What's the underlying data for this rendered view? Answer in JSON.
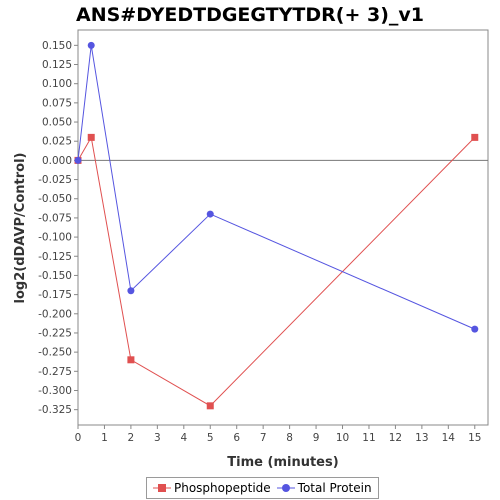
{
  "chart_data": {
    "type": "line",
    "title": "ANS#DYEDTDGEGTYTDR(+ 3)_v1",
    "xlabel": "Time (minutes)",
    "ylabel": "log2(dDAVP/Control)",
    "xlim": [
      0,
      15.5
    ],
    "ylim": [
      -0.345,
      0.17
    ],
    "x_ticks": [
      0,
      1,
      2,
      3,
      4,
      5,
      6,
      7,
      8,
      9,
      10,
      11,
      12,
      13,
      14,
      15
    ],
    "y_ticks": [
      0.15,
      0.125,
      0.1,
      0.075,
      0.05,
      0.025,
      0.0,
      -0.025,
      -0.05,
      -0.075,
      -0.1,
      -0.125,
      -0.15,
      -0.175,
      -0.2,
      -0.225,
      -0.25,
      -0.275,
      -0.3,
      -0.325
    ],
    "y_tick_labels": [
      "0.150",
      "0.125",
      "0.100",
      "0.075",
      "0.050",
      "0.025",
      "0.000",
      "-0.025",
      "-0.050",
      "-0.075",
      "-0.100",
      "-0.125",
      "-0.150",
      "-0.175",
      "-0.200",
      "-0.225",
      "-0.250",
      "-0.275",
      "-0.300",
      "-0.325"
    ],
    "series": [
      {
        "name": "Phosphopeptide",
        "color": "#e05050",
        "marker": "square",
        "x": [
          0,
          0.5,
          2,
          5,
          15
        ],
        "y": [
          0.0,
          0.03,
          -0.26,
          -0.32,
          0.03
        ]
      },
      {
        "name": "Total Protein",
        "color": "#5555e0",
        "marker": "circle",
        "x": [
          0,
          0.5,
          2,
          5,
          15
        ],
        "y": [
          0.0,
          0.15,
          -0.17,
          -0.07,
          -0.22
        ]
      }
    ],
    "zero_line": true,
    "grid": false,
    "legend_position": "bottom"
  }
}
